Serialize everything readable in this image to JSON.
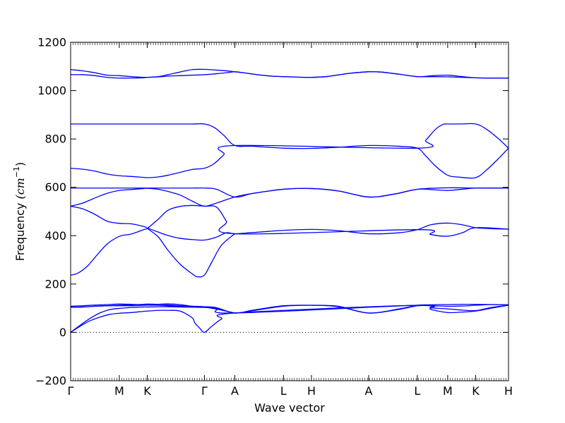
{
  "chart_data": {
    "type": "line",
    "title": "",
    "xlabel": "Wave vector",
    "ylabel": "Frequency",
    "ylabel_unit": "(cm",
    "ylabel_unit_sup": "−1",
    "ylabel_unit_close": ")",
    "ylim": [
      -200,
      1200
    ],
    "yticks": [
      -200,
      0,
      200,
      400,
      600,
      800,
      1000,
      1200
    ],
    "xlim": [
      0,
      18
    ],
    "xticks": [
      {
        "x": 0,
        "label": "Γ"
      },
      {
        "x": 2,
        "label": "M"
      },
      {
        "x": 3.15,
        "label": "K"
      },
      {
        "x": 5.5,
        "label": "Γ"
      },
      {
        "x": 6.75,
        "label": "A"
      },
      {
        "x": 8.75,
        "label": "L"
      },
      {
        "x": 9.9,
        "label": "H"
      },
      {
        "x": 12.25,
        "label": "A"
      },
      {
        "x": 14.25,
        "label": "L"
      },
      {
        "x": 15.5,
        "label": "M"
      },
      {
        "x": 16.65,
        "label": "K"
      },
      {
        "x": 18,
        "label": "H"
      }
    ],
    "zero_line": true,
    "grid": false,
    "line_color": "#0000ff",
    "series": [
      {
        "x": [
          0,
          0.5,
          1,
          1.5,
          2,
          2.5,
          3,
          3.15,
          3.6,
          4,
          4.5,
          5,
          5.5,
          6,
          6.5,
          6.75,
          7.25,
          7.75,
          8.25,
          8.75,
          9.3,
          9.9,
          10.5,
          11,
          11.5,
          12.25,
          12.75,
          13.5,
          14.25,
          14.9,
          15.5,
          16.1,
          16.65,
          17.3,
          18
        ],
        "y": [
          1087,
          1082,
          1074,
          1064,
          1062,
          1058,
          1055,
          1055,
          1058,
          1066,
          1077,
          1087,
          1088,
          1085,
          1081,
          1078,
          1072,
          1065,
          1060,
          1058,
          1056,
          1055,
          1058,
          1065,
          1072,
          1078,
          1077,
          1068,
          1058,
          1058,
          1057,
          1055,
          1053,
          1052,
          1052
        ]
      },
      {
        "x": [
          0,
          0.5,
          1,
          1.5,
          2,
          2.5,
          3,
          3.15,
          3.6,
          4,
          4.5,
          5,
          5.5,
          6,
          6.5,
          6.75,
          7.25,
          7.75,
          8.25,
          8.75,
          9.3,
          9.9,
          10.5,
          11,
          11.5,
          12.25,
          12.75,
          13.5,
          14.25,
          14.9,
          15.5,
          16.1,
          16.65,
          17.3,
          18
        ],
        "y": [
          1066,
          1066,
          1062,
          1055,
          1052,
          1052,
          1053,
          1055,
          1057,
          1060,
          1062,
          1064,
          1066,
          1070,
          1075,
          1078,
          1072,
          1065,
          1060,
          1058,
          1056,
          1055,
          1058,
          1065,
          1072,
          1078,
          1077,
          1068,
          1058,
          1062,
          1064,
          1058,
          1053,
          1052,
          1052
        ]
      },
      {
        "x": [
          0,
          1,
          2,
          3.15,
          4,
          5,
          5.5,
          5.9,
          6.3,
          6.75,
          7.5,
          8.75,
          9.9,
          11,
          12.25,
          13.5,
          14.25,
          14.6,
          15,
          15.5,
          16,
          16.65,
          17.1,
          17.6,
          18
        ],
        "y": [
          862,
          862,
          862,
          862,
          862,
          862,
          862,
          848,
          815,
          773,
          770,
          762,
          761,
          766,
          773,
          770,
          762,
          730,
          688,
          650,
          642,
          640,
          672,
          720,
          762
        ]
      },
      {
        "x": [
          0,
          0.5,
          1,
          1.5,
          2,
          2.5,
          3,
          3.15,
          3.6,
          4,
          4.5,
          5,
          5.5,
          5.9,
          6.3,
          6.75,
          14.25,
          14.6,
          15,
          15.3,
          15.5,
          16,
          16.65,
          17.1,
          17.6,
          18
        ],
        "y": [
          679,
          675,
          667,
          655,
          648,
          645,
          641,
          640,
          643,
          650,
          662,
          674,
          679,
          698,
          735,
          773,
          762,
          795,
          840,
          860,
          862,
          862,
          862,
          840,
          800,
          762
        ]
      },
      {
        "x": [
          0,
          1,
          2,
          3.15,
          4,
          5,
          5.5,
          6,
          6.75,
          7.5,
          8.75,
          9.9,
          11,
          12.25,
          13.3,
          14.25,
          15.5,
          16.65,
          18
        ],
        "y": [
          597,
          597,
          597,
          597,
          597,
          597,
          597,
          592,
          560,
          575,
          592,
          595,
          585,
          560,
          572,
          592,
          598,
          597,
          597
        ]
      },
      {
        "x": [
          0,
          0.5,
          1,
          1.5,
          2,
          2.5,
          3,
          3.15,
          3.6,
          4,
          4.5,
          5,
          5.5,
          6,
          6.75,
          7.5,
          8.75,
          9.9,
          11,
          12.25,
          13.3,
          14.25,
          14.9,
          15.5,
          16.1,
          16.65,
          18
        ],
        "y": [
          522,
          535,
          556,
          575,
          587,
          591,
          595,
          596,
          592,
          583,
          568,
          543,
          522,
          535,
          560,
          575,
          592,
          595,
          585,
          560,
          572,
          592,
          590,
          587,
          592,
          597,
          597
        ]
      },
      {
        "x": [
          0,
          0.5,
          1,
          1.5,
          2,
          2.5,
          3,
          3.15,
          3.6,
          4,
          4.5,
          5,
          5.5,
          6,
          6.4,
          6.75,
          7.5,
          8.75,
          9.9,
          11,
          12.25,
          13.5,
          14.25,
          14.8,
          15.5,
          16.1,
          16.65,
          17.3,
          18
        ],
        "y": [
          522,
          511,
          488,
          460,
          451,
          449,
          438,
          432,
          415,
          401,
          389,
          384,
          382,
          394,
          412,
          408,
          413,
          422,
          426,
          421,
          408,
          412,
          425,
          445,
          452,
          445,
          433,
          429,
          427
        ]
      },
      {
        "x": [
          0,
          0.3,
          0.7,
          1,
          1.5,
          2,
          2.5,
          3,
          3.15,
          3.6,
          4,
          4.5,
          5,
          5.5,
          6,
          6.4,
          6.75,
          14.25,
          14.8,
          15.5,
          16.1,
          16.65,
          18
        ],
        "y": [
          237,
          245,
          275,
          310,
          365,
          397,
          407,
          425,
          430,
          468,
          505,
          521,
          525,
          522,
          518,
          460,
          408,
          425,
          405,
          398,
          412,
          433,
          427
        ]
      },
      {
        "x": [
          3.15,
          3.6,
          4,
          4.5,
          5,
          5.2,
          5.5,
          5.8,
          6.2,
          6.75
        ],
        "y": [
          430,
          395,
          340,
          282,
          242,
          230,
          237,
          290,
          360,
          408
        ]
      },
      {
        "x": [
          0,
          0.5,
          1,
          1.5,
          2,
          2.5,
          3,
          3.15,
          3.6,
          4,
          4.5,
          5,
          5.5,
          6,
          6.75,
          7.5,
          8.75,
          9.9,
          11,
          12.25,
          13.5,
          14.25,
          14.8,
          15.5,
          16.1,
          16.65,
          17.3,
          18
        ],
        "y": [
          108,
          110,
          113,
          115,
          117,
          116,
          114,
          113,
          112,
          110,
          107,
          106,
          106,
          102,
          80,
          92,
          110,
          112,
          108,
          80,
          97,
          112,
          114,
          115,
          116,
          116,
          115,
          114
        ]
      },
      {
        "x": [
          0,
          0.5,
          1,
          1.5,
          2,
          2.5,
          3,
          3.15,
          3.6,
          4,
          4.5,
          5,
          5.5,
          6,
          6.75,
          7.5,
          8.75,
          9.9,
          11,
          12.25,
          13.5,
          14.25,
          14.8,
          15.5,
          16.1,
          16.65,
          17.3,
          18
        ],
        "y": [
          104,
          105,
          108,
          110,
          112,
          114,
          116,
          117,
          116,
          114,
          110,
          108,
          106,
          100,
          80,
          90,
          108,
          112,
          106,
          80,
          95,
          110,
          110,
          108,
          109,
          112,
          115,
          114
        ]
      },
      {
        "x": [
          0,
          0.4,
          0.8,
          1.2,
          1.6,
          2,
          2.5,
          3,
          3.15,
          3.6,
          4,
          4.5,
          5,
          5.5,
          6,
          6.75,
          14.25,
          14.8,
          15.5,
          16.1,
          16.65,
          17.3,
          18
        ],
        "y": [
          0,
          30,
          58,
          80,
          94,
          99,
          103,
          105,
          105,
          106,
          106,
          105,
          104,
          103,
          98,
          80,
          112,
          102,
          97,
          92,
          90,
          103,
          112
        ]
      },
      {
        "x": [
          0,
          0.4,
          0.8,
          1.2,
          1.6,
          2,
          2.5,
          3,
          3.15,
          3.6,
          4,
          4.5,
          5,
          5.1,
          5.3,
          5.5,
          5.8,
          6.2,
          6.75,
          14.25,
          14.8,
          15.5,
          16.1,
          16.65,
          17.3,
          18
        ],
        "y": [
          0,
          26,
          48,
          63,
          74,
          79,
          82,
          87,
          88,
          91,
          91,
          88,
          60,
          40,
          18,
          0,
          25,
          55,
          80,
          112,
          95,
          82,
          84,
          88,
          100,
          112
        ]
      },
      {
        "x": [
          0,
          0.5,
          1,
          1.5,
          2,
          2.5,
          3,
          3.15,
          3.6,
          4,
          4.5,
          5,
          5.5,
          6,
          6.75
        ],
        "y": [
          104,
          105,
          108,
          110,
          110,
          110,
          112,
          113,
          116,
          118,
          115,
          108,
          104,
          96,
          80
        ]
      }
    ]
  }
}
